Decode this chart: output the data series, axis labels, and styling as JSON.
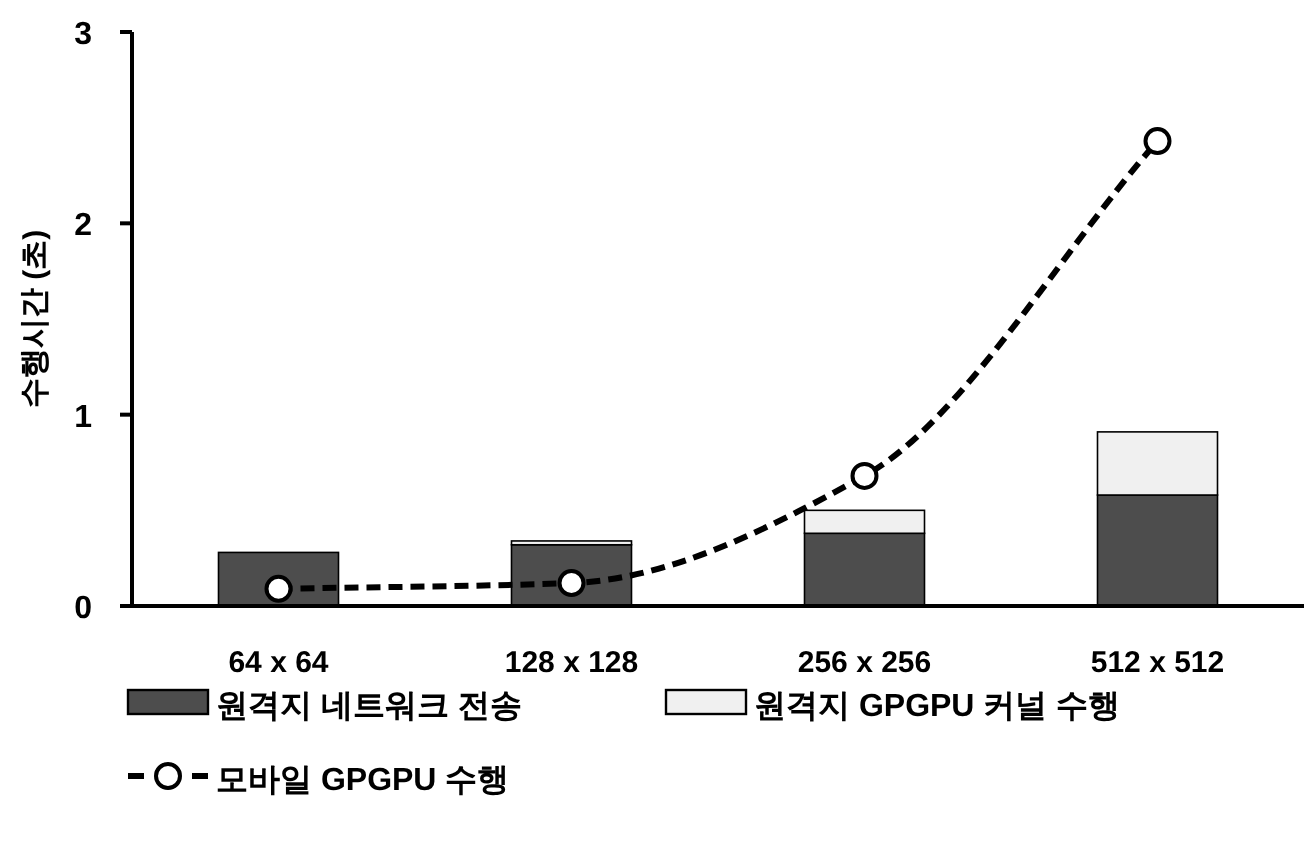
{
  "chart_data": {
    "type": "bar",
    "stacked": true,
    "ylabel": "수행시간 (초)",
    "categories": [
      "64 x 64",
      "128 x 128",
      "256 x 256",
      "512 x 512"
    ],
    "series": [
      {
        "name": "원격지 네트워크 전송",
        "color": "#4d4d4d",
        "values": [
          0.28,
          0.32,
          0.38,
          0.58
        ]
      },
      {
        "name": "원격지 GPGPU 커널 수행",
        "color": "#f0f0f0",
        "values": [
          null,
          0.02,
          0.12,
          0.33
        ]
      },
      {
        "name": "모바일 GPGPU 수행",
        "type": "line",
        "color": "#000000",
        "marker": "circle",
        "line_style": "dashed",
        "values": [
          0.09,
          0.12,
          0.68,
          2.43
        ]
      }
    ],
    "ylim": [
      0,
      3
    ],
    "yticks": [
      0,
      1,
      2,
      3
    ],
    "grid": false,
    "legend": "bottom"
  }
}
